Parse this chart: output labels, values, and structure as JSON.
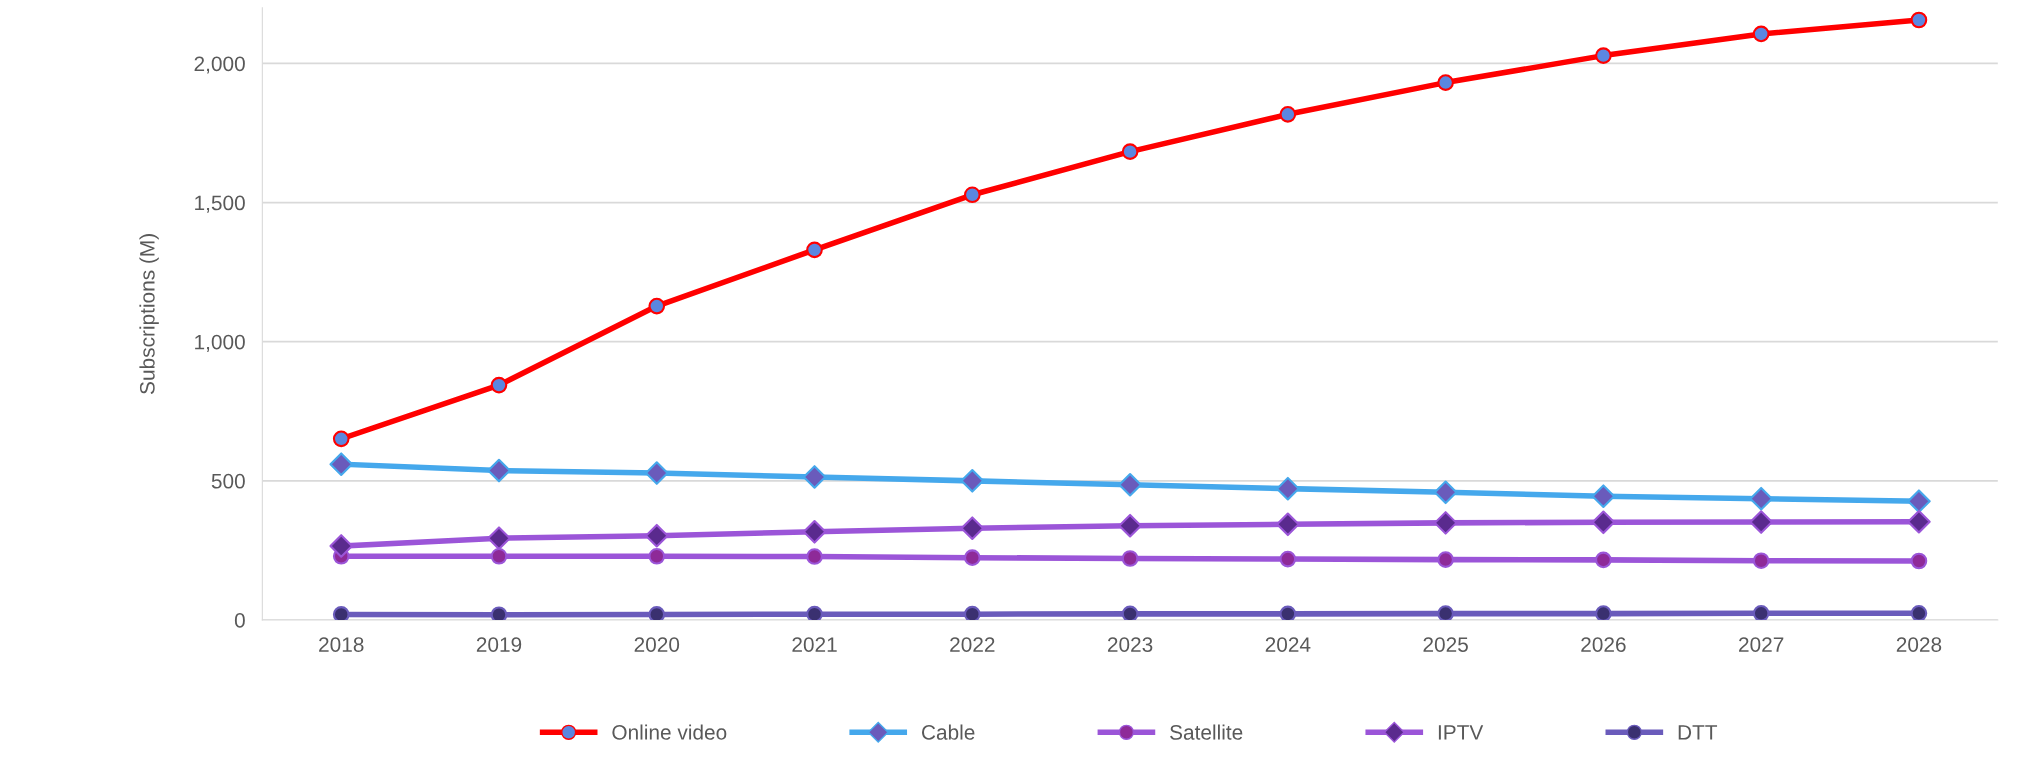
{
  "chart_data": {
    "type": "line",
    "ylabel": "Subscriptions (M)",
    "categories": [
      "2018",
      "2019",
      "2020",
      "2021",
      "2022",
      "2023",
      "2024",
      "2025",
      "2026",
      "2027",
      "2028"
    ],
    "ylim": [
      0,
      2200
    ],
    "yticks": [
      0,
      {
        "value": 500,
        "label": "500"
      },
      {
        "value": 1000,
        "label": "1,000"
      },
      {
        "value": 1500,
        "label": "1,500"
      },
      {
        "value": 2000,
        "label": "2,000"
      }
    ],
    "grid": "y",
    "legend": "bottom",
    "line_style": "solid",
    "series": [
      {
        "name": "Online video",
        "color": "#ff0000",
        "marker": "circle",
        "colors": [
          "#5b87e0",
          "#5b87e0",
          "#5b87e0",
          "#5b87e0",
          "#5b87e0",
          "#5b87e0",
          "#5b87e0",
          "#5b87e0",
          "#5b87e0",
          "#5b87e0",
          "#5b87e0"
        ],
        "values": [
          651,
          844,
          1128,
          1330,
          1528,
          1683,
          1817,
          1931,
          2028,
          2106,
          2156
        ]
      },
      {
        "name": "Cable",
        "color": "#45a8ec",
        "marker": "diamond",
        "colors": [
          "#6a5bbb",
          "#6a5bbb",
          "#6a5bbb",
          "#6a5bbb",
          "#6a5bbb",
          "#6a5bbb",
          "#6a5bbb",
          "#6a5bbb",
          "#6a5bbb",
          "#6a5bbb",
          "#6a5bbb"
        ],
        "values": [
          560,
          537,
          528,
          514,
          500,
          486,
          472,
          459,
          445,
          436,
          427
        ]
      },
      {
        "name": "Satellite",
        "color": "#9b55d8",
        "marker": "circle",
        "colors": [
          "#8e2a98",
          "#8e2a98",
          "#8e2a98",
          "#8e2a98",
          "#8e2a98",
          "#8e2a98",
          "#8e2a98",
          "#8e2a98",
          "#8e2a98",
          "#8e2a98",
          "#8e2a98"
        ],
        "values": [
          229,
          229,
          229,
          228,
          224,
          221,
          219,
          217,
          216,
          213,
          212
        ]
      },
      {
        "name": "IPTV",
        "color": "#9b55d8",
        "marker": "diamond",
        "colors": [
          "#5a2a8e",
          "#5a2a8e",
          "#5a2a8e",
          "#5a2a8e",
          "#5a2a8e",
          "#5a2a8e",
          "#5a2a8e",
          "#5a2a8e",
          "#5a2a8e",
          "#5a2a8e",
          "#5a2a8e"
        ],
        "values": [
          266,
          294,
          303,
          317,
          330,
          339,
          344,
          349,
          351,
          352,
          353
        ]
      },
      {
        "name": "DTT",
        "color": "#6a5bbb",
        "marker": "circle",
        "colors": [
          "#3a3070",
          "#3a3070",
          "#3a3070",
          "#3a3070",
          "#3a3070",
          "#3a3070",
          "#3a3070",
          "#3a3070",
          "#3a3070",
          "#3a3070",
          "#3a3070"
        ],
        "values": [
          20,
          19,
          20,
          21,
          21,
          22,
          22,
          23,
          23,
          24,
          24
        ]
      }
    ]
  }
}
